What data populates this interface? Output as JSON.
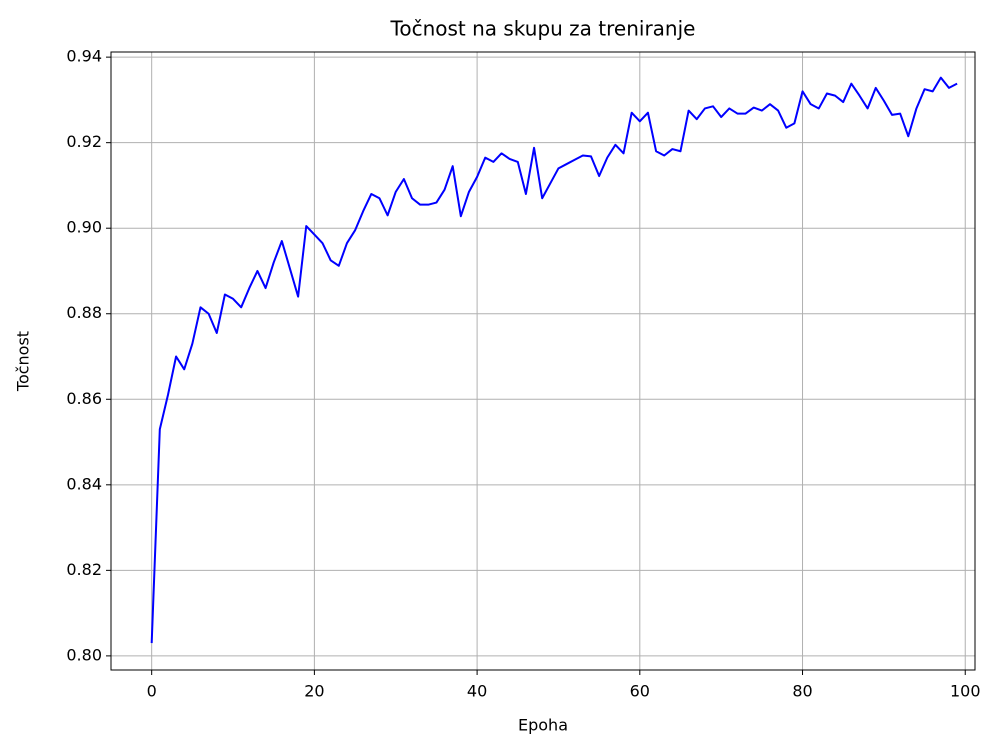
{
  "chart_data": {
    "type": "line",
    "title": "Točnost na skupu za treniranje",
    "x_label": "Epoha",
    "y_label": "Točnost",
    "x": [
      0,
      1,
      2,
      3,
      4,
      5,
      6,
      7,
      8,
      9,
      10,
      11,
      12,
      13,
      14,
      15,
      16,
      17,
      18,
      19,
      20,
      21,
      22,
      23,
      24,
      25,
      26,
      27,
      28,
      29,
      30,
      31,
      32,
      33,
      34,
      35,
      36,
      37,
      38,
      39,
      40,
      41,
      42,
      43,
      44,
      45,
      46,
      47,
      48,
      49,
      50,
      51,
      52,
      53,
      54,
      55,
      56,
      57,
      58,
      59,
      60,
      61,
      62,
      63,
      64,
      65,
      66,
      67,
      68,
      69,
      70,
      71,
      72,
      73,
      74,
      75,
      76,
      77,
      78,
      79,
      80,
      81,
      82,
      83,
      84,
      85,
      86,
      87,
      88,
      89,
      90,
      91,
      92,
      93,
      94,
      95,
      96,
      97,
      98,
      99
    ],
    "series": [
      {
        "name": "Točnost",
        "color": "#0000ff",
        "values": [
          0.803,
          0.853,
          0.861,
          0.87,
          0.867,
          0.873,
          0.8815,
          0.88,
          0.8755,
          0.8845,
          0.8835,
          0.8815,
          0.886,
          0.89,
          0.886,
          0.892,
          0.897,
          0.8905,
          0.884,
          0.9005,
          0.8985,
          0.8965,
          0.8925,
          0.8912,
          0.8965,
          0.8995,
          0.904,
          0.908,
          0.907,
          0.903,
          0.9085,
          0.9115,
          0.907,
          0.9055,
          0.9055,
          0.906,
          0.909,
          0.9145,
          0.9028,
          0.9085,
          0.912,
          0.9165,
          0.9155,
          0.9175,
          0.9162,
          0.9155,
          0.908,
          0.9188,
          0.907,
          0.9105,
          0.914,
          0.915,
          0.916,
          0.917,
          0.9168,
          0.9122,
          0.9165,
          0.9195,
          0.9175,
          0.927,
          0.925,
          0.927,
          0.918,
          0.917,
          0.9185,
          0.918,
          0.9275,
          0.9255,
          0.928,
          0.9285,
          0.926,
          0.928,
          0.9268,
          0.9268,
          0.9282,
          0.9275,
          0.929,
          0.9275,
          0.9235,
          0.9245,
          0.932,
          0.929,
          0.928,
          0.9315,
          0.931,
          0.9295,
          0.9338,
          0.931,
          0.928,
          0.9328,
          0.9298,
          0.9265,
          0.9268,
          0.9215,
          0.928,
          0.9325,
          0.932,
          0.9352,
          0.9328,
          0.9338
        ]
      }
    ],
    "xlim": [
      -5,
      101.2
    ],
    "xticks": [
      0,
      20,
      40,
      60,
      80,
      100
    ],
    "ylim": [
      0.7967,
      0.9412
    ],
    "yticks": [
      {
        "value": 0.8,
        "label": "0.80"
      },
      {
        "value": 0.82,
        "label": "0.82"
      },
      {
        "value": 0.84,
        "label": "0.84"
      },
      {
        "value": 0.86,
        "label": "0.86"
      },
      {
        "value": 0.88,
        "label": "0.88"
      },
      {
        "value": 0.9,
        "label": "0.90"
      },
      {
        "value": 0.92,
        "label": "0.92"
      },
      {
        "value": 0.94,
        "label": "0.94"
      }
    ],
    "grid": true
  }
}
